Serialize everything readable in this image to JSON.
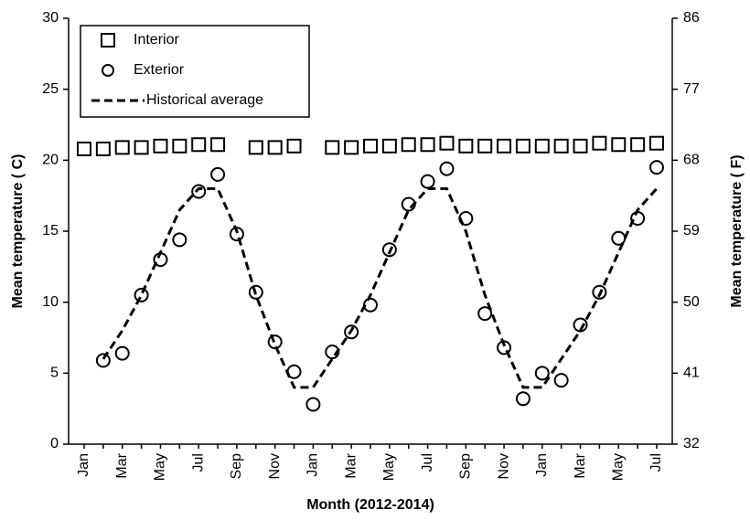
{
  "chart_data": {
    "type": "line",
    "xlabel": "Month (2012-2014)",
    "ylabel": "Mean temperature ( C)",
    "y2label": "Mean temperature ( F)",
    "categories": [
      "Jan",
      null,
      "Mar",
      null,
      "May",
      null,
      "Jul",
      null,
      "Sep",
      null,
      "Nov",
      null,
      "Jan",
      null,
      "Mar",
      null,
      "May",
      null,
      "Jul",
      null,
      "Sep",
      null,
      "Nov",
      null,
      "Jan",
      null,
      "Mar",
      null,
      "May",
      null,
      "Jul"
    ],
    "ylim": [
      0,
      30
    ],
    "yticks": [
      0,
      5,
      10,
      15,
      20,
      25,
      30
    ],
    "y2lim": [
      32,
      86
    ],
    "y2ticks": [
      32,
      41,
      50,
      59,
      68,
      77,
      86
    ],
    "legend": "upper left",
    "series": [
      {
        "name": "Interior",
        "color": "#000000",
        "marker": "square",
        "values": [
          20.8,
          20.8,
          20.9,
          20.9,
          21.0,
          21.0,
          21.1,
          21.1,
          null,
          20.9,
          20.9,
          21.0,
          null,
          20.9,
          20.9,
          21.0,
          21.0,
          21.1,
          21.1,
          21.2,
          21.0,
          21.0,
          21.0,
          21.0,
          21.0,
          21.0,
          21.0,
          21.2,
          21.1,
          21.1,
          21.2
        ]
      },
      {
        "name": "Exterior",
        "color": "#000000",
        "marker": "circle",
        "values": [
          null,
          5.9,
          6.4,
          10.5,
          13.0,
          14.4,
          17.8,
          19.0,
          14.8,
          10.7,
          7.2,
          5.1,
          2.8,
          6.5,
          7.9,
          9.8,
          13.7,
          16.9,
          18.5,
          19.4,
          15.9,
          9.2,
          6.8,
          3.2,
          5.0,
          4.5,
          8.4,
          10.7,
          14.5,
          15.9,
          19.5
        ]
      },
      {
        "name": "Historical average",
        "color": "#000000",
        "marker": "dashed",
        "values": [
          null,
          6.0,
          8.0,
          10.5,
          13.5,
          16.5,
          18.0,
          18.0,
          15.0,
          10.5,
          7.0,
          4.0,
          4.0,
          6.0,
          8.0,
          10.5,
          13.5,
          16.5,
          18.0,
          18.0,
          15.0,
          10.5,
          7.0,
          4.0,
          4.0,
          6.0,
          8.0,
          10.5,
          13.5,
          16.5,
          18.0
        ]
      }
    ]
  }
}
